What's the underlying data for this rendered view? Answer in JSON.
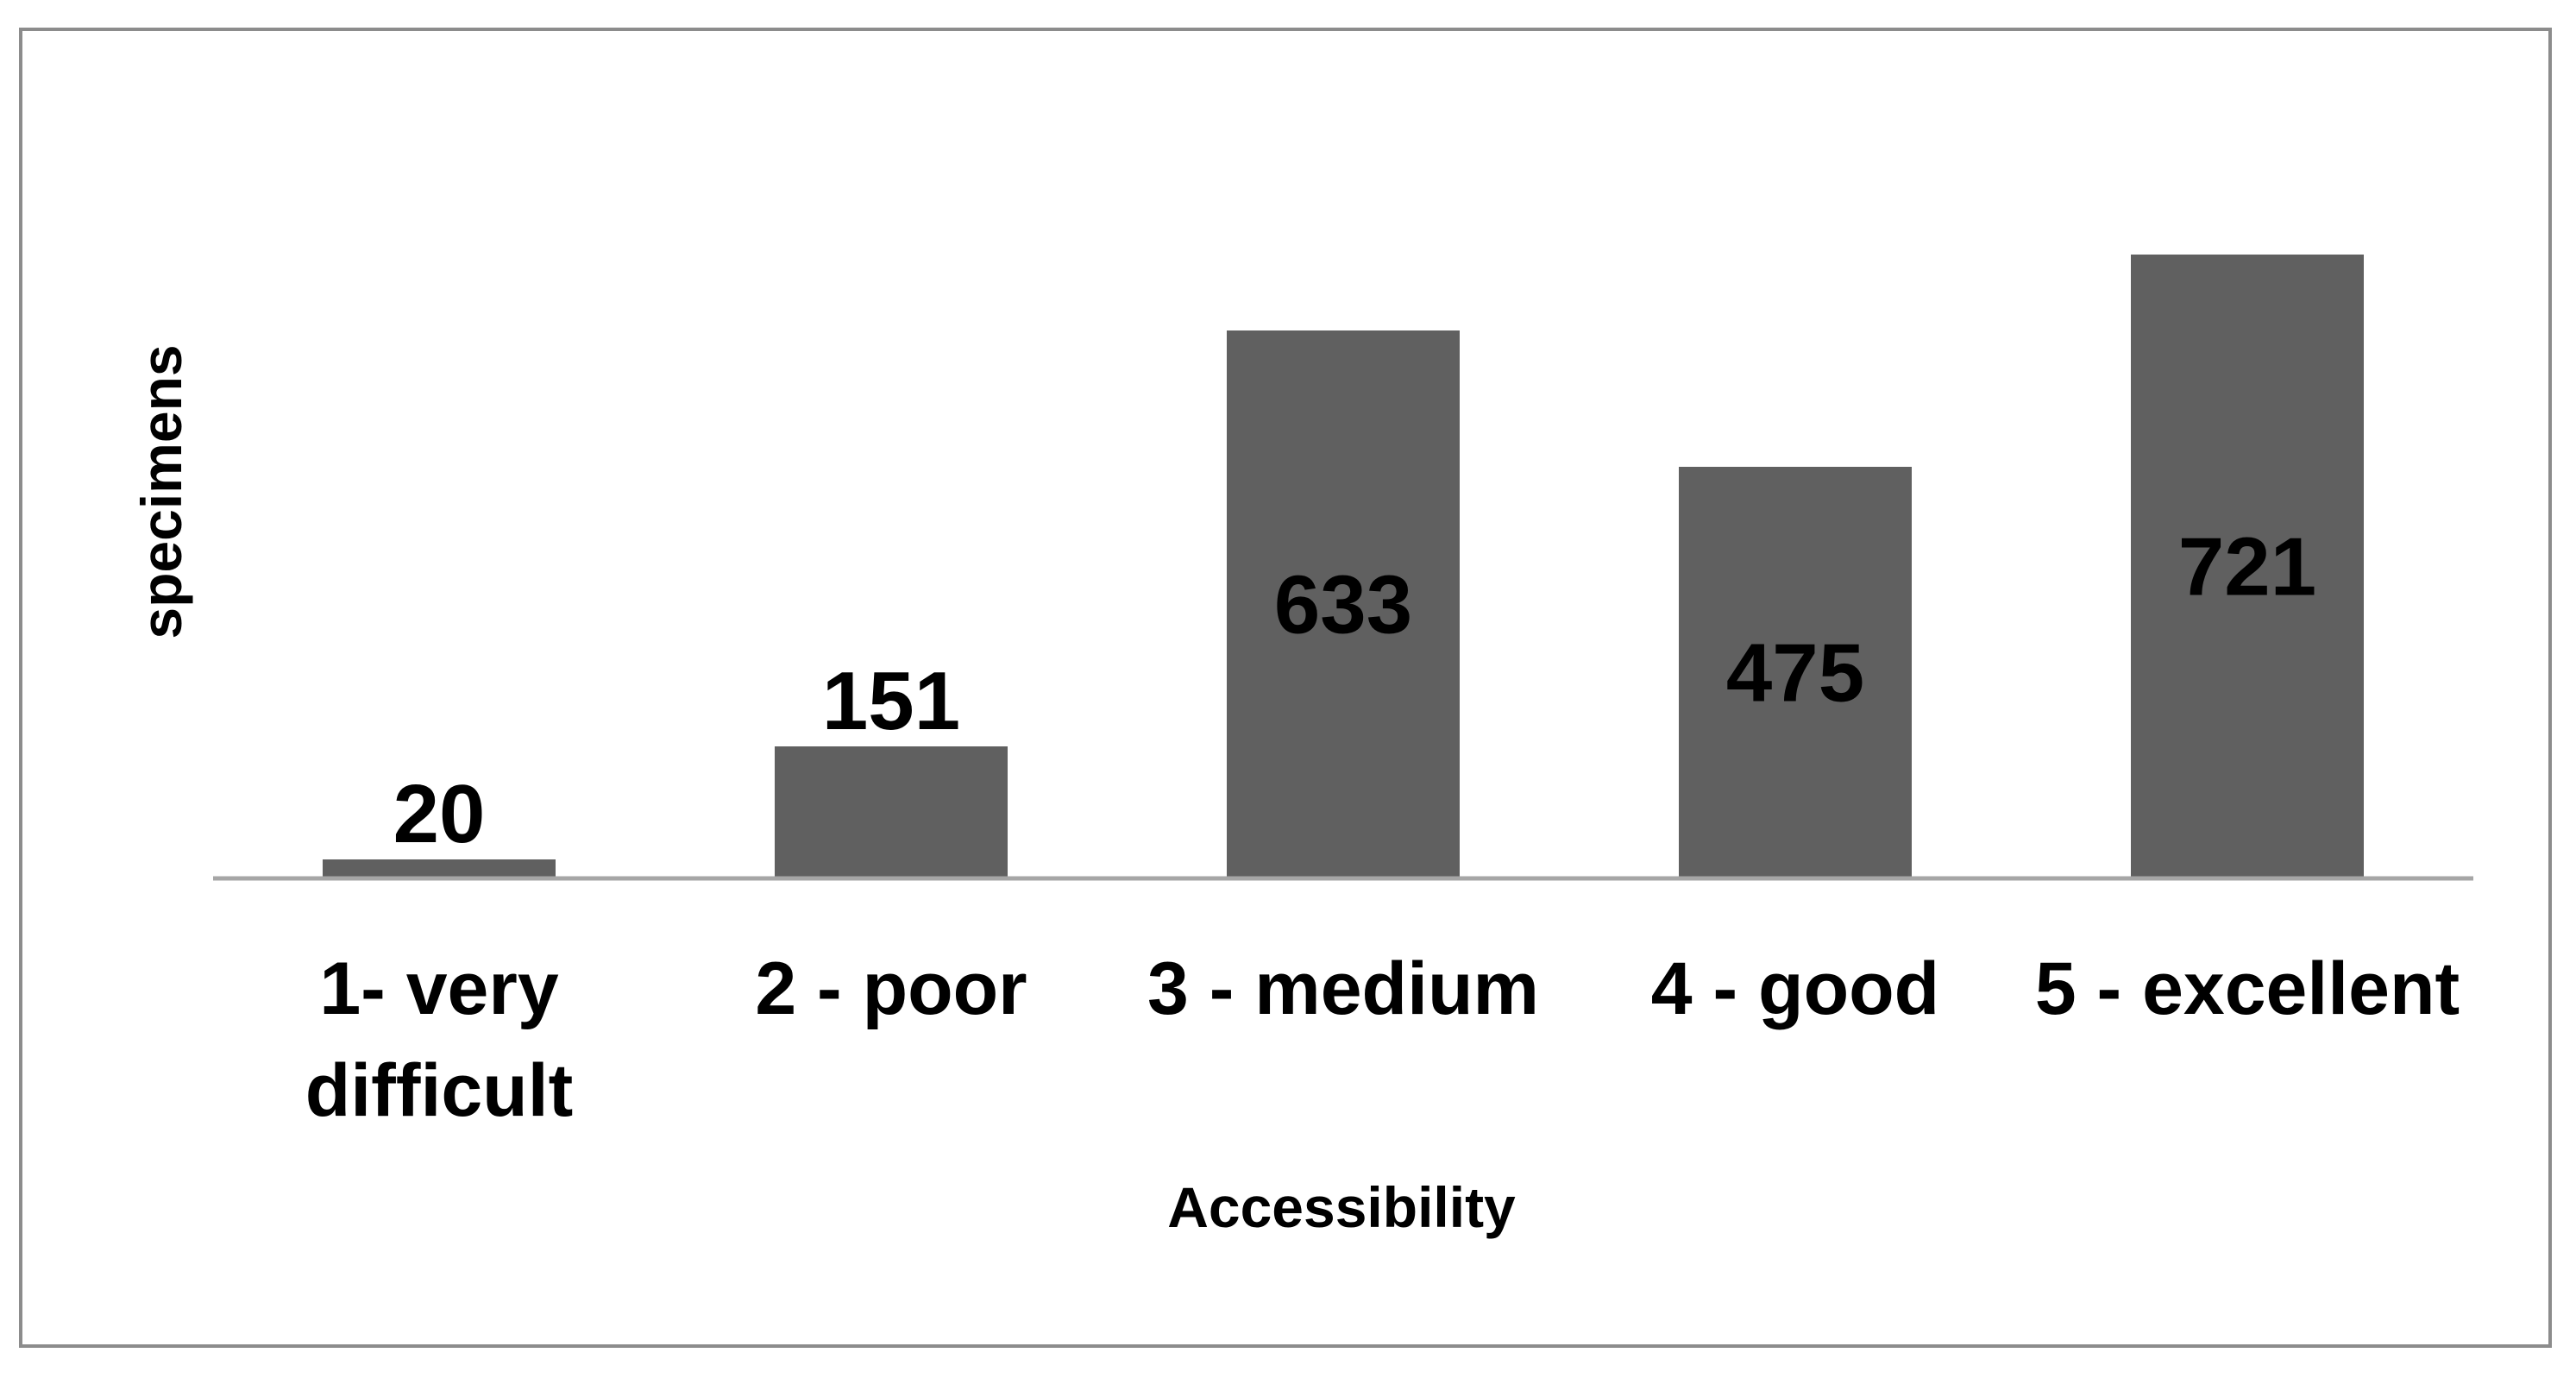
{
  "chart_data": {
    "type": "bar",
    "title": "",
    "xlabel": "Accessibility",
    "ylabel": "specimens",
    "categories": [
      [
        "1- very",
        "difficult"
      ],
      [
        "2 - poor"
      ],
      [
        "3 - medium"
      ],
      [
        "4 - good"
      ],
      [
        "5 - excellent"
      ]
    ],
    "values": [
      20,
      151,
      633,
      475,
      721
    ],
    "ylim": [
      0,
      800
    ],
    "grid": false,
    "legend": "none",
    "bar_color": "#606060",
    "axis_color": "#a6a6a6"
  }
}
